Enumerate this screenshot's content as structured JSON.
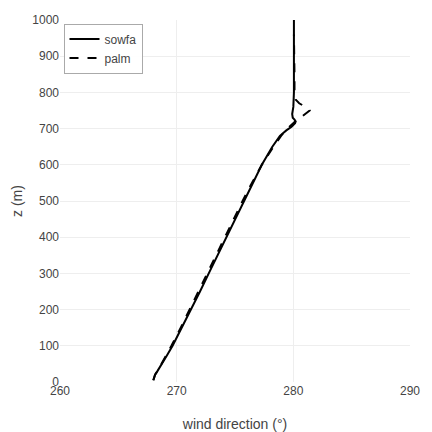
{
  "chart_data": {
    "type": "line",
    "xlabel": "wind direction (°)",
    "ylabel": "z (m)",
    "xlim": [
      260,
      290
    ],
    "ylim": [
      0,
      1000
    ],
    "xticks": [
      260,
      270,
      280,
      290
    ],
    "yticks": [
      0,
      100,
      200,
      300,
      400,
      500,
      600,
      700,
      800,
      900,
      1000
    ],
    "grid": true,
    "legend": "upper left",
    "series": [
      {
        "name": "sowfa",
        "color": "#000000",
        "line_style": "solid",
        "x": [
          268.0,
          268.05,
          268.15,
          268.35,
          268.75,
          269.2,
          269.65,
          270.45,
          271.2,
          272.0,
          272.75,
          273.5,
          274.25,
          275.0,
          275.75,
          276.5,
          277.3,
          278.2,
          278.85,
          279.4,
          279.85,
          280.15,
          280.2,
          280.1,
          279.95,
          279.9,
          279.95,
          280.0,
          280.05,
          280.05,
          280.05,
          280.05,
          280.05
        ],
        "values": [
          5,
          10,
          20,
          30,
          50,
          75,
          100,
          150,
          200,
          250,
          300,
          350,
          400,
          450,
          500,
          550,
          600,
          650,
          680,
          695,
          705,
          715,
          720,
          725,
          730,
          740,
          750,
          760,
          800,
          850,
          900,
          950,
          1000
        ]
      },
      {
        "name": "palm",
        "color": "#000000",
        "line_style": "dashed",
        "x": [
          268.0,
          268.05,
          268.15,
          268.35,
          268.7,
          269.1,
          269.55,
          270.35,
          271.1,
          271.9,
          272.65,
          273.4,
          274.15,
          274.9,
          275.65,
          276.45,
          277.3,
          278.3,
          278.95,
          279.5,
          279.85,
          280.15,
          280.5,
          280.8,
          281.0,
          281.2,
          281.4,
          281.3,
          281.0,
          280.5,
          280.2,
          280.1,
          280.1,
          280.1,
          280.08,
          280.05
        ],
        "values": [
          5,
          10,
          20,
          30,
          50,
          75,
          100,
          150,
          200,
          250,
          300,
          350,
          400,
          450,
          500,
          550,
          600,
          650,
          680,
          700,
          710,
          720,
          730,
          735,
          740,
          745,
          750,
          755,
          760,
          770,
          780,
          800,
          850,
          900,
          950,
          960
        ]
      }
    ]
  }
}
